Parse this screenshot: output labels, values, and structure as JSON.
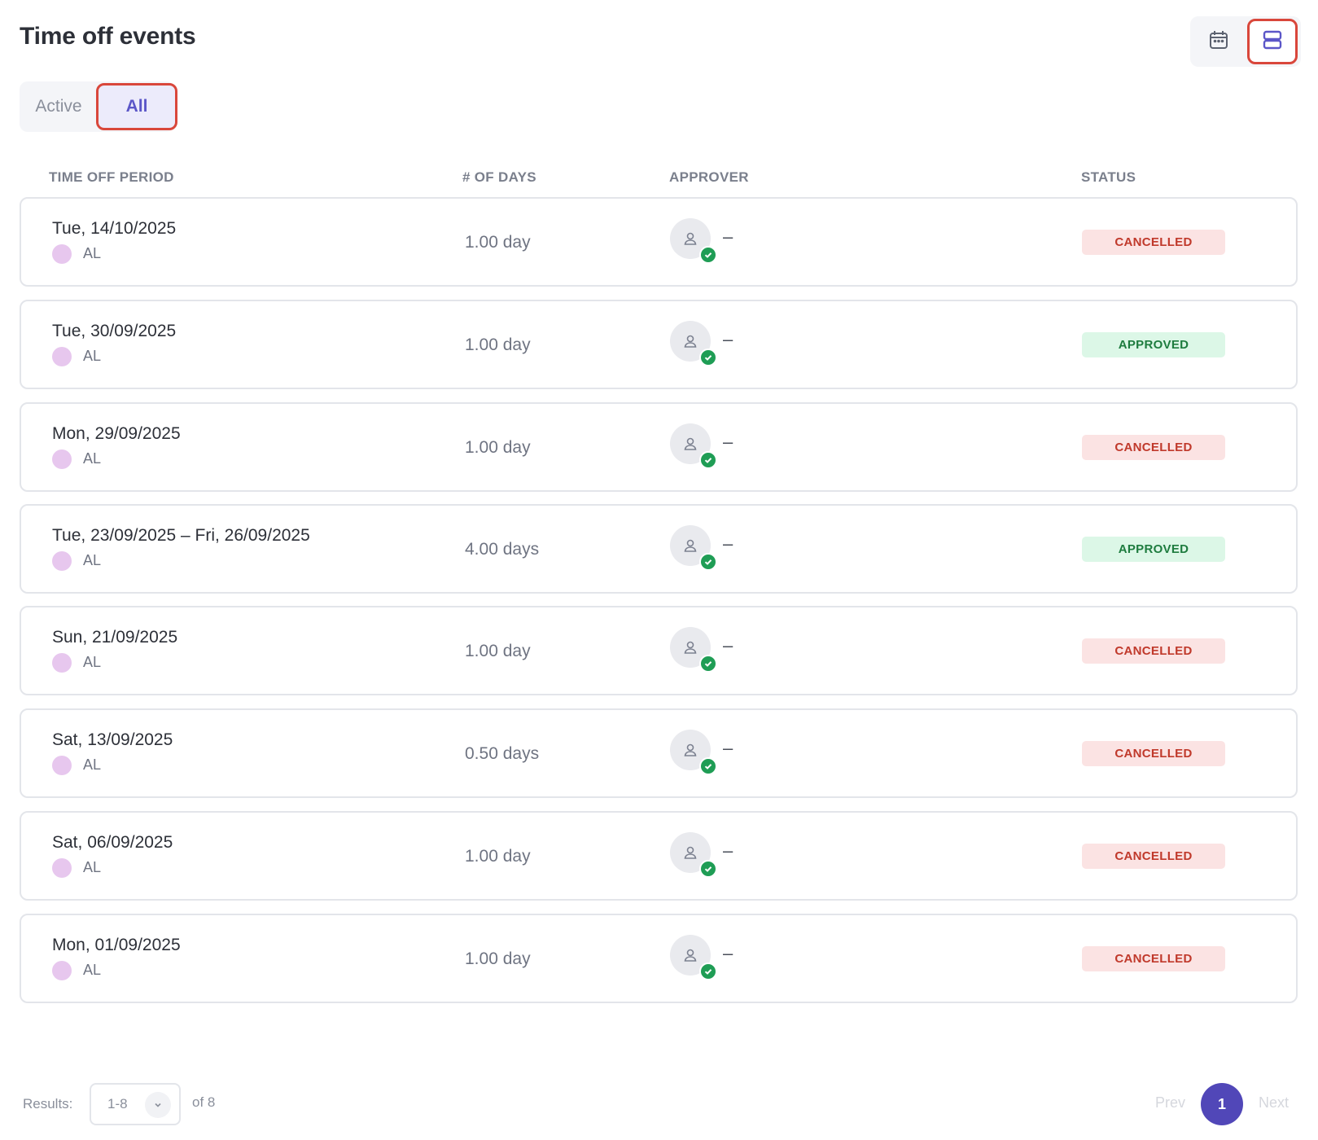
{
  "header": {
    "title": "Time off events",
    "view_buttons": [
      {
        "icon": "calendar-icon",
        "selected": false
      },
      {
        "icon": "list-view-icon",
        "selected": true
      }
    ]
  },
  "tabs": [
    {
      "label": "Active",
      "selected": false
    },
    {
      "label": "All",
      "selected": true
    }
  ],
  "table": {
    "columns": [
      "TIME OFF PERIOD",
      "# OF DAYS",
      "APPROVER",
      "STATUS"
    ],
    "rows": [
      {
        "period": "Tue, 14/10/2025",
        "type": "AL",
        "days": "1.00 day",
        "approver": "–",
        "status": "CANCELLED"
      },
      {
        "period": "Tue, 30/09/2025",
        "type": "AL",
        "days": "1.00 day",
        "approver": "–",
        "status": "APPROVED"
      },
      {
        "period": "Mon, 29/09/2025",
        "type": "AL",
        "days": "1.00 day",
        "approver": "–",
        "status": "CANCELLED"
      },
      {
        "period": "Tue, 23/09/2025 – Fri, 26/09/2025",
        "type": "AL",
        "days": "4.00 days",
        "approver": "–",
        "status": "APPROVED"
      },
      {
        "period": "Sun, 21/09/2025",
        "type": "AL",
        "days": "1.00 day",
        "approver": "–",
        "status": "CANCELLED"
      },
      {
        "period": "Sat, 13/09/2025",
        "type": "AL",
        "days": "0.50 days",
        "approver": "–",
        "status": "CANCELLED"
      },
      {
        "period": "Sat, 06/09/2025",
        "type": "AL",
        "days": "1.00 day",
        "approver": "–",
        "status": "CANCELLED"
      },
      {
        "period": "Mon, 01/09/2025",
        "type": "AL",
        "days": "1.00 day",
        "approver": "–",
        "status": "CANCELLED"
      }
    ]
  },
  "footer": {
    "results_label": "Results:",
    "results_value": "1-8",
    "total": "of 8",
    "prev_label": "Prev",
    "current_page": "1",
    "next_label": "Next"
  },
  "colors": {
    "accent": "#5147b8",
    "highlight_border": "#d9473b",
    "cancelled_bg": "#fbe3e3",
    "cancelled_text": "#c0392b",
    "approved_bg": "#dcf7e7",
    "approved_text": "#1e7c3f",
    "type_dot": "#e7c7ee"
  }
}
